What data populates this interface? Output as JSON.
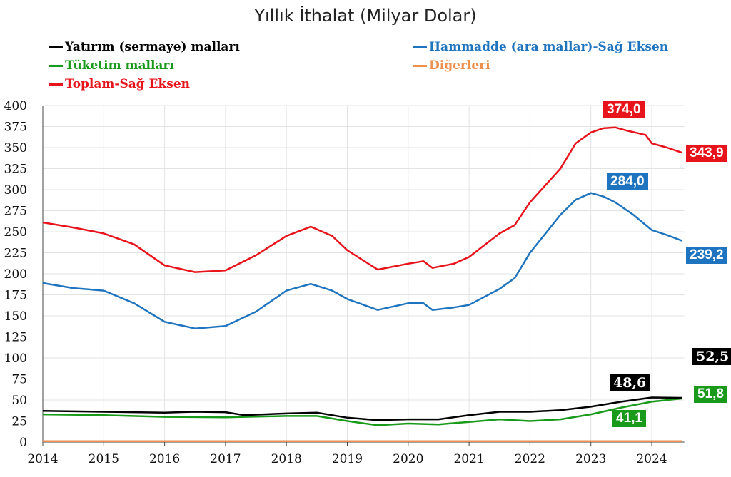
{
  "chart_data": {
    "type": "line",
    "title": "Yıllık İthalat (Milyar Dolar)",
    "xlabel": "",
    "ylabel": "",
    "xlim": [
      2014,
      2024.5
    ],
    "ylim": [
      0,
      400
    ],
    "x_ticks": [
      "2014",
      "2015",
      "2016",
      "2017",
      "2018",
      "2019",
      "2020",
      "2021",
      "2022",
      "2023",
      "2024"
    ],
    "y_ticks": [
      "0",
      "25",
      "50",
      "75",
      "100",
      "125",
      "150",
      "175",
      "200",
      "225",
      "250",
      "275",
      "300",
      "325",
      "350",
      "375",
      "400"
    ],
    "grid": true,
    "legend_placement": "top",
    "series": [
      {
        "name": "Yatırım (sermaye) malları",
        "color": "#000000",
        "x": [
          2014,
          2015,
          2016,
          2016.5,
          2017,
          2017.3,
          2018,
          2018.5,
          2019,
          2019.5,
          2020,
          2020.5,
          2021,
          2021.5,
          2022,
          2022.5,
          2023,
          2023.5,
          2024,
          2024.5
        ],
        "y": [
          37,
          36,
          35,
          36,
          35.5,
          32,
          34,
          35,
          29,
          26,
          27,
          27,
          32,
          36,
          36,
          38,
          42,
          48,
          53,
          52.5
        ]
      },
      {
        "name": "Tüketim malları",
        "color": "#1a9a1a",
        "x": [
          2014,
          2015,
          2016,
          2017,
          2018,
          2018.5,
          2019,
          2019.5,
          2020,
          2020.5,
          2021,
          2021.5,
          2022,
          2022.5,
          2023,
          2023.5,
          2024,
          2024.5
        ],
        "y": [
          33,
          32,
          30,
          29.5,
          31,
          31,
          25,
          20,
          22,
          21,
          24,
          27,
          25,
          27,
          33,
          41,
          48,
          51.8
        ]
      },
      {
        "name": "Toplam-Sağ Eksen",
        "color": "#e8141b",
        "x": [
          2014,
          2014.5,
          2015,
          2015.5,
          2016,
          2016.5,
          2017,
          2017.5,
          2018,
          2018.4,
          2018.75,
          2019,
          2019.5,
          2020,
          2020.25,
          2020.4,
          2020.75,
          2021,
          2021.5,
          2021.75,
          2022,
          2022.5,
          2022.75,
          2023,
          2023.2,
          2023.4,
          2023.6,
          2023.9,
          2024,
          2024.25,
          2024.5
        ],
        "y": [
          261,
          255,
          248,
          235,
          210,
          202,
          204,
          222,
          245,
          256,
          245,
          228,
          205,
          212,
          215,
          207,
          212,
          220,
          248,
          258,
          285,
          325,
          355,
          368,
          373,
          374,
          370,
          365,
          355,
          350,
          343.9
        ]
      },
      {
        "name": "Hammadde (ara mallar)-Sağ Eksen",
        "color": "#1f74bf",
        "x": [
          2014,
          2014.5,
          2015,
          2015.5,
          2016,
          2016.5,
          2017,
          2017.5,
          2018,
          2018.4,
          2018.75,
          2019,
          2019.5,
          2020,
          2020.25,
          2020.4,
          2020.75,
          2021,
          2021.5,
          2021.75,
          2022,
          2022.5,
          2022.75,
          2023,
          2023.2,
          2023.4,
          2023.7,
          2024,
          2024.25,
          2024.5
        ],
        "y": [
          189,
          183,
          180,
          165,
          143,
          135,
          138,
          155,
          180,
          188,
          180,
          170,
          157,
          165,
          165,
          157,
          160,
          163,
          182,
          195,
          225,
          270,
          288,
          296,
          292,
          285,
          270,
          252,
          246,
          239.2
        ]
      },
      {
        "name": "Diğerleri",
        "color": "#ed8f4e",
        "x": [
          2014,
          2024.5
        ],
        "y": [
          1,
          1
        ]
      }
    ],
    "annotations": [
      {
        "text": "374,0",
        "color": "#e8141b"
      },
      {
        "text": "343,9",
        "color": "#e8141b"
      },
      {
        "text": "284,0",
        "color": "#1f74bf"
      },
      {
        "text": "239,2",
        "color": "#1f74bf"
      },
      {
        "text": "52,5",
        "color": "#000000"
      },
      {
        "text": "48,6",
        "color": "#000000"
      },
      {
        "text": "51,8",
        "color": "#1a9a1a"
      },
      {
        "text": "41,1",
        "color": "#1a9a1a"
      }
    ]
  }
}
